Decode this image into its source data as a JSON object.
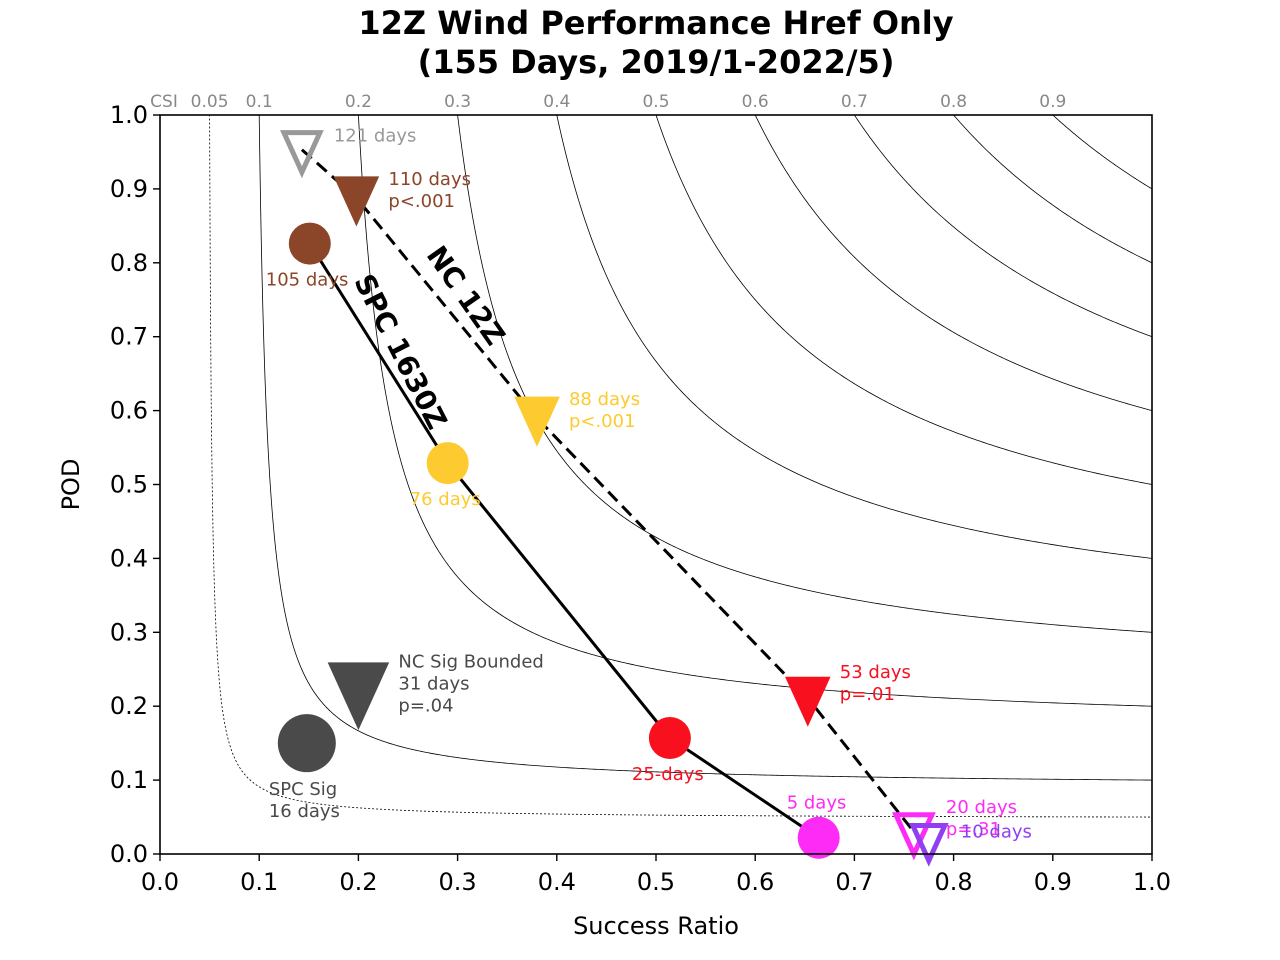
{
  "chart_data": {
    "type": "scatter",
    "title_line1": "12Z Wind Performance Href Only",
    "title_line2": "(155 Days, 2019/1-2022/5)",
    "xlabel": "Success Ratio",
    "ylabel": "POD",
    "xlim": [
      0.0,
      1.0
    ],
    "ylim": [
      0.0,
      1.0
    ],
    "xticks": [
      "0.0",
      "0.1",
      "0.2",
      "0.3",
      "0.4",
      "0.5",
      "0.6",
      "0.7",
      "0.8",
      "0.9",
      "1.0"
    ],
    "yticks": [
      "0.0",
      "0.1",
      "0.2",
      "0.3",
      "0.4",
      "0.5",
      "0.6",
      "0.7",
      "0.8",
      "0.9",
      "1.0"
    ],
    "csi_label": "CSI",
    "csi_values": [
      0.05,
      0.1,
      0.2,
      0.3,
      0.4,
      0.5,
      0.6,
      0.7,
      0.8,
      0.9
    ],
    "csi_tick_labels": [
      "0.05",
      "0.1",
      "0.2",
      "0.3",
      "0.4",
      "0.5",
      "0.6",
      "0.7",
      "0.8",
      "0.9"
    ],
    "lines": [
      {
        "label": "SPC 1630Z",
        "style": "solid",
        "points": [
          [
            0.151,
            0.826
          ],
          [
            0.29,
            0.529
          ],
          [
            0.514,
            0.157
          ],
          [
            0.664,
            0.022
          ]
        ]
      },
      {
        "label": "NC 12Z",
        "style": "dashed",
        "points": [
          [
            0.143,
            0.953
          ],
          [
            0.198,
            0.888
          ],
          [
            0.38,
            0.59
          ],
          [
            0.653,
            0.211
          ],
          [
            0.76,
            0.03
          ]
        ]
      }
    ],
    "points": [
      {
        "marker": "circle",
        "x": 0.151,
        "y": 0.826,
        "color": "#8B4528",
        "size": 21,
        "label": "105 days",
        "dx": -44,
        "dy": 42
      },
      {
        "marker": "circle",
        "x": 0.29,
        "y": 0.529,
        "color": "#FDCA30",
        "size": 21,
        "label": "76 days",
        "dx": -38,
        "dy": 42
      },
      {
        "marker": "circle",
        "x": 0.514,
        "y": 0.157,
        "color": "#F8101F",
        "size": 21,
        "label": "25-days",
        "dx": -38,
        "dy": 42
      },
      {
        "marker": "circle",
        "x": 0.664,
        "y": 0.022,
        "color": "#FE2AF6",
        "size": 21,
        "label": "5 days",
        "dx": -32,
        "dy": -29
      },
      {
        "marker": "circle",
        "x": 0.148,
        "y": 0.15,
        "color": "#4A4A4A",
        "size": 29,
        "label": "SPC Sig",
        "label2": "16 days",
        "dx": -38,
        "dy": 52
      },
      {
        "marker": "tri",
        "filled": false,
        "x": 0.143,
        "y": 0.953,
        "color": "#999999",
        "size": 18,
        "label": "121 days",
        "dx": 32,
        "dy": -8
      },
      {
        "marker": "tri",
        "filled": true,
        "x": 0.198,
        "y": 0.888,
        "color": "#8B4528",
        "size": 22,
        "label": "110 days",
        "label2": "p<.001",
        "dx": 32,
        "dy": -13
      },
      {
        "marker": "tri",
        "filled": true,
        "x": 0.38,
        "y": 0.59,
        "color": "#FDCA30",
        "size": 22,
        "label": "88 days",
        "label2": "p<.001",
        "dx": 32,
        "dy": -13
      },
      {
        "marker": "tri",
        "filled": true,
        "x": 0.653,
        "y": 0.211,
        "color": "#F8101F",
        "size": 22,
        "label": "53 days",
        "label2": "p=.01",
        "dx": 32,
        "dy": -20
      },
      {
        "marker": "tri",
        "filled": true,
        "x": 0.2,
        "y": 0.22,
        "color": "#4A4A4A",
        "size": 30,
        "label": "NC Sig Bounded",
        "label2": "31 days",
        "label3": "p=.04",
        "dx": 40,
        "dy": -24
      },
      {
        "marker": "tri",
        "filled": false,
        "x": 0.76,
        "y": 0.03,
        "color": "#FE2AF6",
        "size": 18,
        "label": "20 days",
        "label2": "p=.31",
        "dx": 32,
        "dy": -19
      },
      {
        "marker": "tri",
        "filled": false,
        "x": 0.775,
        "y": 0.018,
        "color": "#9040F0",
        "size": 16,
        "label": "10 days",
        "dx": 32,
        "dy": -3
      }
    ]
  }
}
